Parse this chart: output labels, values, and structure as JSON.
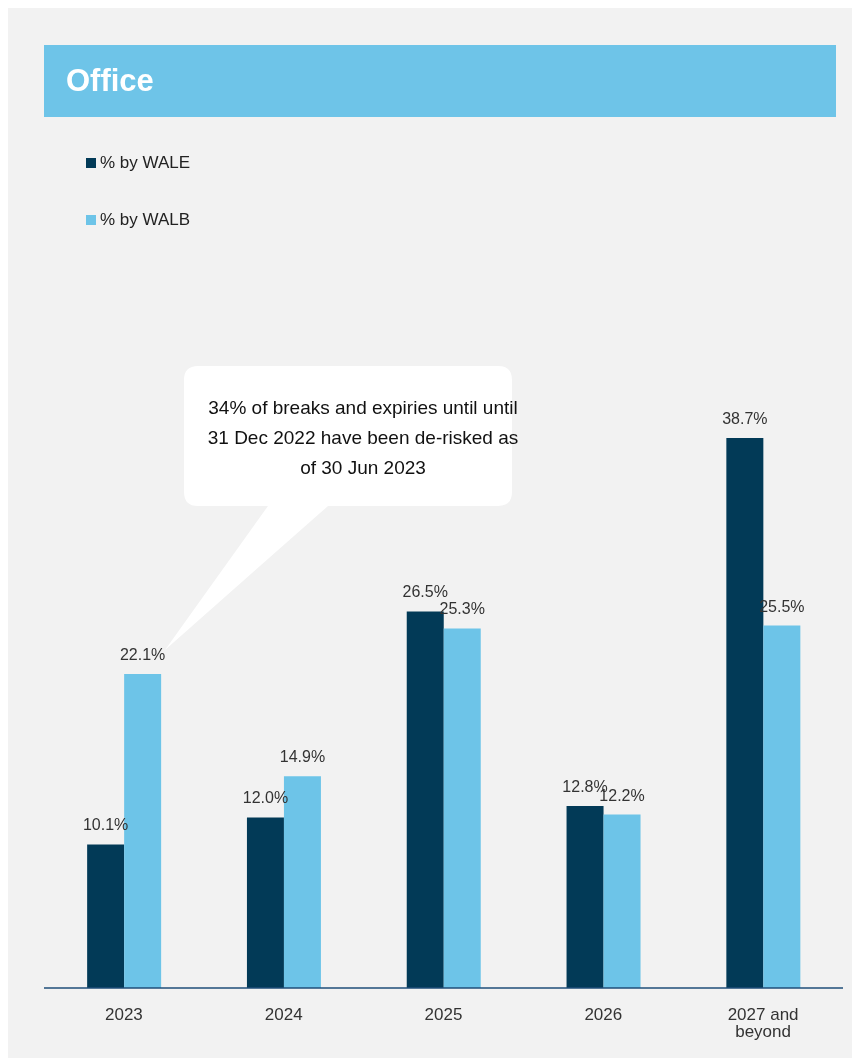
{
  "chart_data": {
    "type": "bar",
    "title": "Office",
    "categories": [
      "2023",
      "2024",
      "2025",
      "2026",
      "2027 and beyond"
    ],
    "series": [
      {
        "name": "% by WALE",
        "color": "#023a57",
        "values": [
          10.1,
          12.0,
          26.5,
          12.8,
          38.7
        ],
        "value_labels": [
          "10.1%",
          "12.0%",
          "26.5%",
          "12.8%",
          "38.7%"
        ]
      },
      {
        "name": "% by WALB",
        "color": "#6dc4e8",
        "values": [
          22.1,
          14.9,
          25.3,
          12.2,
          25.5
        ],
        "value_labels": [
          "22.1%",
          "14.9%",
          "25.3%",
          "12.2%",
          "25.5%"
        ]
      }
    ],
    "annotations": [
      "34% of breaks and expiries until until 31 Dec 2022 have been de-risked as of 30 Jun 2023"
    ],
    "legend": "top left"
  }
}
